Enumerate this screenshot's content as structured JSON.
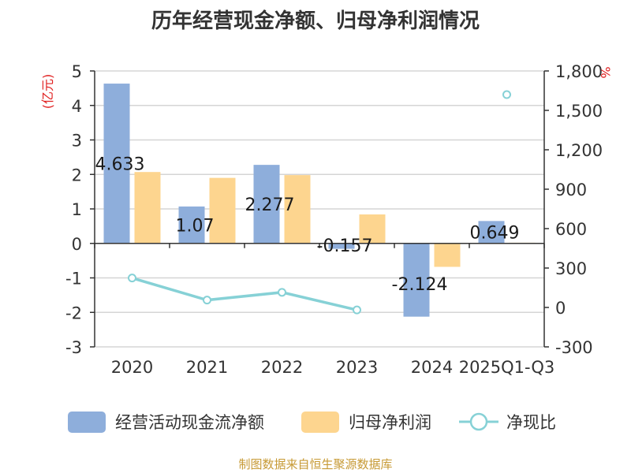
{
  "chart_data": {
    "type": "bar",
    "title": "历年经营现金净额、归母净利润情况",
    "categories": [
      "2020",
      "2021",
      "2022",
      "2023",
      "2024",
      "2025Q1-Q3"
    ],
    "series": [
      {
        "name": "经营活动现金流净额",
        "type": "bar",
        "axis": "left",
        "color": "#8eaedb",
        "values": [
          4.633,
          1.07,
          2.277,
          -0.157,
          -2.124,
          0.649
        ],
        "labels": [
          "4.633",
          "1.07",
          "2.277",
          "-0.157",
          "-2.124",
          "0.649"
        ]
      },
      {
        "name": "归母净利润",
        "type": "bar",
        "axis": "left",
        "color": "#fdd58f",
        "values": [
          2.07,
          1.9,
          1.98,
          0.84,
          -0.68,
          0.02
        ]
      },
      {
        "name": "净现比",
        "type": "line",
        "axis": "right",
        "color": "#86d1d6",
        "values": [
          224,
          56,
          115,
          -19,
          null,
          1620
        ]
      }
    ],
    "y_left": {
      "unit": "(亿元)",
      "min": -3,
      "max": 5,
      "ticks": [
        "-3",
        "-2",
        "-1",
        "0",
        "1",
        "2",
        "3",
        "4",
        "5"
      ]
    },
    "y_right": {
      "unit": "%",
      "min": -300,
      "max": 1800,
      "ticks": [
        "-300",
        "0",
        "300",
        "600",
        "900",
        "1,200",
        "1,500",
        "1,800"
      ]
    },
    "grid": true,
    "legend": "bottom"
  },
  "source": "制图数据来自恒生聚源数据库"
}
